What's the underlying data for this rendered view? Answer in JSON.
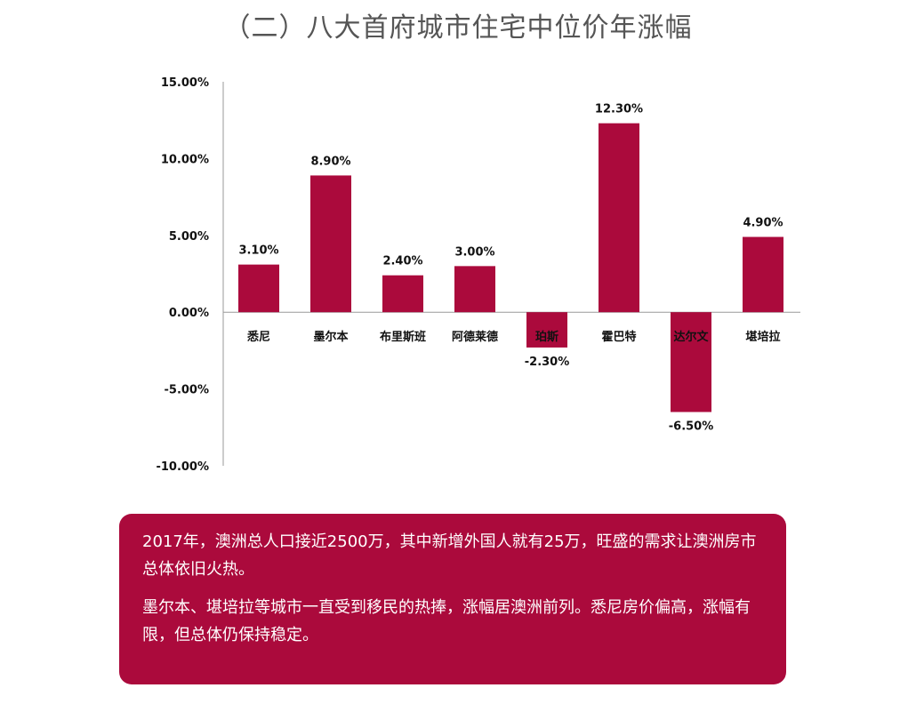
{
  "title": "（二）八大首府城市住宅中位价年涨幅",
  "colors": {
    "bar": "#ab0a3c",
    "axis": "#999999",
    "note_bg": "#ab0a3c"
  },
  "chart_data": {
    "type": "bar",
    "categories": [
      "悉尼",
      "墨尔本",
      "布里斯班",
      "阿德莱德",
      "珀斯",
      "霍巴特",
      "达尔文",
      "堪培拉"
    ],
    "values": [
      3.1,
      8.9,
      2.4,
      3.0,
      -2.3,
      12.3,
      -6.5,
      4.9
    ],
    "value_labels": [
      "3.10%",
      "8.90%",
      "2.40%",
      "3.00%",
      "-2.30%",
      "12.30%",
      "-6.50%",
      "4.90%"
    ],
    "y_ticks": [
      15,
      10,
      5,
      0,
      -5,
      -10
    ],
    "y_tick_labels": [
      "15.00%",
      "10.00%",
      "5.00%",
      "0.00%",
      "-5.00%",
      "-10.00%"
    ],
    "ylim": [
      -10,
      15
    ],
    "grid": false,
    "legend": "none"
  },
  "note": {
    "paragraphs": [
      "2017年，澳洲总人口接近2500万，其中新增外国人就有25万，旺盛的需求让澳洲房市总体依旧火热。",
      "墨尔本、堪培拉等城市一直受到移民的热捧，涨幅居澳洲前列。悉尼房价偏高，涨幅有限，但总体仍保持稳定。"
    ]
  }
}
